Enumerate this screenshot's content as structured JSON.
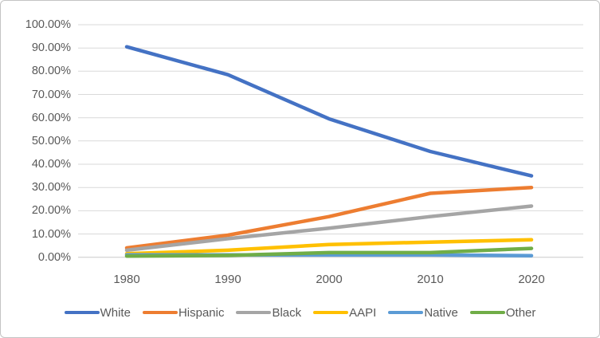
{
  "chart_data": {
    "type": "line",
    "title": "",
    "xlabel": "",
    "ylabel": "",
    "categories": [
      "1980",
      "1990",
      "2000",
      "2010",
      "2020"
    ],
    "series": [
      {
        "name": "White",
        "color": "#4472C4",
        "values": [
          90.5,
          78.5,
          59.5,
          45.5,
          35.0
        ]
      },
      {
        "name": "Hispanic",
        "color": "#ED7D31",
        "values": [
          4.0,
          9.5,
          17.5,
          27.5,
          30.0
        ]
      },
      {
        "name": "Black",
        "color": "#A5A5A5",
        "values": [
          3.0,
          8.0,
          12.5,
          17.5,
          22.0
        ]
      },
      {
        "name": "AAPI",
        "color": "#FFC000",
        "values": [
          1.5,
          3.0,
          5.5,
          6.5,
          7.5
        ]
      },
      {
        "name": "Native",
        "color": "#5B9BD5",
        "values": [
          1.0,
          1.0,
          1.0,
          1.0,
          0.7
        ]
      },
      {
        "name": "Other",
        "color": "#70AD47",
        "values": [
          0.5,
          0.8,
          2.0,
          2.0,
          3.8
        ]
      }
    ],
    "y_ticks": [
      "100.00%",
      "90.00%",
      "80.00%",
      "70.00%",
      "60.00%",
      "50.00%",
      "40.00%",
      "30.00%",
      "20.00%",
      "10.00%",
      "0.00%"
    ],
    "ylim": [
      0,
      100
    ],
    "grid": true,
    "legend_position": "bottom"
  },
  "colors": {
    "axis_text": "#595959",
    "gridline": "#D9D9D9",
    "axis_line": "#C9C9C9",
    "border": "#C3C3C3",
    "background": "#FFFFFF"
  }
}
